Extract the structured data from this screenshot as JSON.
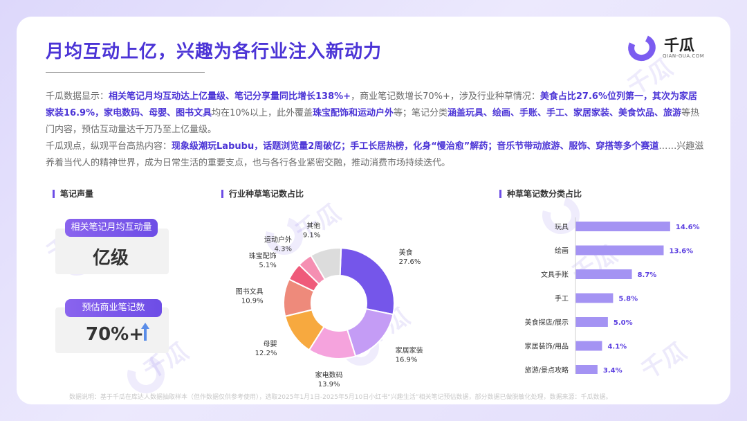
{
  "title": "月均互动上亿，兴趣为各行业注入新动力",
  "logo": {
    "name": "千瓜",
    "sub": "QIAN-GUA.COM"
  },
  "paragraph1": [
    {
      "t": "千瓜数据显示：",
      "b": false
    },
    {
      "t": "相关笔记月均互动达上亿量级、笔记分享量同比增长138%+",
      "b": true
    },
    {
      "t": "，商业笔记数增长70%+，涉及行业种草情况：",
      "b": false
    },
    {
      "t": "美食占比27.6%位列第一，其次为家居家装16.9%，家电数码、母婴、图书文具",
      "b": true
    },
    {
      "t": "均在10%以上，此外覆盖",
      "b": false
    },
    {
      "t": "珠宝配饰和运动户外",
      "b": true
    },
    {
      "t": "等；笔记分类",
      "b": false
    },
    {
      "t": "涵盖玩具、绘画、手账、手工、家居家装、美食饮品、旅游",
      "b": true
    },
    {
      "t": "等热门内容，预估互动量达千万乃至上亿量级。",
      "b": false
    }
  ],
  "paragraph2": [
    {
      "t": "千瓜观点，纵观平台高热内容：",
      "b": false
    },
    {
      "t": "现象级潮玩Labubu，话题浏览量2周破亿；手工长居热榜，化身“慢治愈”解药；音乐节带动旅游、服饰、穿搭等多个赛道",
      "b": true
    },
    {
      "t": "……兴趣滋养着当代人的精神世界，成为日常生活的重要支点，也与各行各业紧密交融，推动消费市场持续迭代。",
      "b": false
    }
  ],
  "section1": {
    "title": "笔记声量"
  },
  "kpis": [
    {
      "label": "相关笔记月均互动量",
      "value": "亿级"
    },
    {
      "label": "预估商业笔记数",
      "value": "70%+"
    }
  ],
  "section2": {
    "title": "行业种草笔记数占比"
  },
  "section3": {
    "title": "种草笔记数分类占比"
  },
  "colors": {
    "accent": "#4b34d6",
    "bar": "#a493f3",
    "pie": [
      "#7556ea",
      "#c49cf5",
      "#f5a3dd",
      "#f7a93f",
      "#ee8a7b",
      "#ef5a7a",
      "#f58fb2",
      "#dcdcdc"
    ]
  },
  "chart_data": [
    {
      "type": "pie",
      "title": "行业种草笔记数占比",
      "labels": [
        "美食",
        "家居家装",
        "家电数码",
        "母婴",
        "图书文具",
        "珠宝配饰",
        "运动户外",
        "其他"
      ],
      "values": [
        27.6,
        16.9,
        13.9,
        12.2,
        10.9,
        5.1,
        4.3,
        9.1
      ],
      "value_labels": [
        "27.6%",
        "16.9%",
        "13.9%",
        "12.2%",
        "10.9%",
        "5.1%",
        "4.3%",
        "9.1%"
      ],
      "donut": true
    },
    {
      "type": "bar",
      "orientation": "horizontal",
      "title": "种草笔记数分类占比",
      "categories": [
        "玩具",
        "绘画",
        "文具手账",
        "手工",
        "美食探店/展示",
        "家居装饰/用品",
        "旅游/景点攻略"
      ],
      "values": [
        14.6,
        13.6,
        8.7,
        5.8,
        5.0,
        4.1,
        3.4
      ],
      "value_labels": [
        "14.6%",
        "13.6%",
        "8.7%",
        "5.8%",
        "5.0%",
        "4.1%",
        "3.4%"
      ],
      "xlim": [
        0,
        16
      ]
    }
  ],
  "footnote": "数据说明：基于千瓜在库达人数据抽取样本（但作数据仅供参考使用），选取2025年1月1日-2025年5月10日小红书“兴趣生活”相关笔记预估数据，部分数据已做脱敏化处理，数据来源：千瓜数据。"
}
